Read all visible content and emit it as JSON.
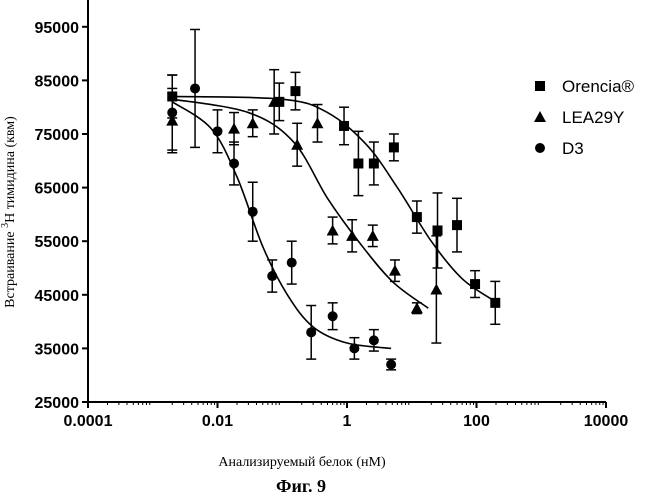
{
  "chart_data": {
    "type": "scatter",
    "xscale": "log",
    "xlim": [
      0.0001,
      10000
    ],
    "ylim": [
      25000,
      100000
    ],
    "xticks": [
      0.0001,
      0.01,
      1,
      100,
      10000
    ],
    "xtick_labels": [
      "0.0001",
      "0.01",
      "1",
      "100",
      "10000"
    ],
    "yticks": [
      25000,
      35000,
      45000,
      55000,
      65000,
      75000,
      85000,
      95000
    ],
    "ytick_labels": [
      "25000",
      "35000",
      "45000",
      "55000",
      "65000",
      "75000",
      "85000",
      "95000"
    ],
    "xlabel": "Анализируемый белок (нМ)",
    "ylabel_pre": "Встраивание ",
    "ylabel_sup": "3",
    "ylabel_post": "Н тимидина (квм)",
    "caption": "Фиг. 9",
    "grid": false,
    "legend_position": "right",
    "series": [
      {
        "name": "Orencia®",
        "marker": "square",
        "points": [
          {
            "x": 0.002,
            "y": 82000,
            "err": 4000
          },
          {
            "x": 0.09,
            "y": 81000,
            "err": 3500
          },
          {
            "x": 0.16,
            "y": 83000,
            "err": 3500
          },
          {
            "x": 0.9,
            "y": 76500,
            "err": 3500
          },
          {
            "x": 1.5,
            "y": 69500,
            "err": 6000
          },
          {
            "x": 2.6,
            "y": 69500,
            "err": 4000
          },
          {
            "x": 5.3,
            "y": 72500,
            "err": 2500
          },
          {
            "x": 12,
            "y": 59500,
            "err": 3000
          },
          {
            "x": 25,
            "y": 57000,
            "err": 7000
          },
          {
            "x": 50,
            "y": 58000,
            "err": 5000
          },
          {
            "x": 95,
            "y": 47000,
            "err": 2500
          },
          {
            "x": 195,
            "y": 43500,
            "err": 4000
          }
        ],
        "fit": [
          [
            0.002,
            82000
          ],
          [
            0.1,
            81500
          ],
          [
            0.5,
            79000
          ],
          [
            2,
            73000
          ],
          [
            6,
            65000
          ],
          [
            20,
            55000
          ],
          [
            60,
            48000
          ],
          [
            180,
            44000
          ]
        ]
      },
      {
        "name": "LEA29Y",
        "marker": "triangle",
        "points": [
          {
            "x": 0.002,
            "y": 77500,
            "err": 6000
          },
          {
            "x": 0.018,
            "y": 76000,
            "err": 3000
          },
          {
            "x": 0.035,
            "y": 77000,
            "err": 2500
          },
          {
            "x": 0.075,
            "y": 81000,
            "err": 6000
          },
          {
            "x": 0.17,
            "y": 73000,
            "err": 4000
          },
          {
            "x": 0.35,
            "y": 77000,
            "err": 3500
          },
          {
            "x": 0.6,
            "y": 57000,
            "err": 2500
          },
          {
            "x": 1.2,
            "y": 56000,
            "err": 3000
          },
          {
            "x": 2.5,
            "y": 56000,
            "err": 2000
          },
          {
            "x": 5.5,
            "y": 49500,
            "err": 2000
          },
          {
            "x": 12,
            "y": 42500,
            "err": 1000
          },
          {
            "x": 24,
            "y": 46000,
            "err": 10000
          }
        ],
        "fit": [
          [
            0.002,
            81500
          ],
          [
            0.03,
            79000
          ],
          [
            0.15,
            73500
          ],
          [
            0.5,
            63000
          ],
          [
            1.5,
            55000
          ],
          [
            5,
            47500
          ],
          [
            18,
            42500
          ]
        ]
      },
      {
        "name": "D3",
        "marker": "circle",
        "points": [
          {
            "x": 0.002,
            "y": 79000,
            "err": 7000
          },
          {
            "x": 0.0045,
            "y": 83500,
            "err": 11000
          },
          {
            "x": 0.01,
            "y": 75500,
            "err": 4000
          },
          {
            "x": 0.018,
            "y": 69500,
            "err": 4000
          },
          {
            "x": 0.035,
            "y": 60500,
            "err": 5500
          },
          {
            "x": 0.07,
            "y": 48500,
            "err": 3000
          },
          {
            "x": 0.14,
            "y": 51000,
            "err": 4000
          },
          {
            "x": 0.28,
            "y": 38000,
            "err": 5000
          },
          {
            "x": 0.6,
            "y": 41000,
            "err": 2500
          },
          {
            "x": 1.3,
            "y": 35000,
            "err": 2000
          },
          {
            "x": 2.6,
            "y": 36500,
            "err": 2000
          },
          {
            "x": 4.8,
            "y": 32000,
            "err": 1000
          }
        ],
        "fit": [
          [
            0.002,
            81000
          ],
          [
            0.008,
            76000
          ],
          [
            0.02,
            67000
          ],
          [
            0.05,
            54000
          ],
          [
            0.12,
            45000
          ],
          [
            0.3,
            39000
          ],
          [
            1,
            36000
          ],
          [
            4.8,
            35000
          ]
        ]
      }
    ]
  }
}
